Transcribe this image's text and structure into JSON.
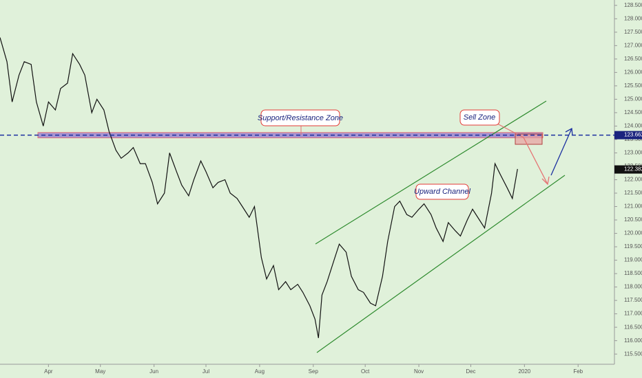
{
  "chart_data": {
    "type": "line",
    "color": "#111111",
    "x": [
      0,
      4,
      7,
      11,
      14,
      18,
      21,
      25,
      28,
      32,
      35,
      39,
      42,
      46,
      49,
      53,
      56,
      60,
      63,
      67,
      70,
      74,
      77,
      81,
      84,
      88,
      91,
      95,
      98,
      102,
      105,
      109,
      112,
      116,
      119,
      123,
      126,
      130,
      133,
      137,
      140,
      144,
      147,
      151,
      154,
      158,
      161,
      165,
      168,
      172,
      175,
      179,
      182,
      184,
      186,
      189,
      193,
      196,
      200,
      203,
      207,
      210,
      214,
      217,
      221,
      224,
      228,
      231,
      235,
      238,
      242,
      245,
      249,
      252,
      256,
      259,
      263,
      266,
      270,
      273,
      277,
      280,
      284,
      286,
      289,
      293,
      296,
      299
    ],
    "values": [
      127.3,
      126.4,
      124.9,
      125.9,
      126.4,
      126.3,
      124.9,
      124.0,
      124.9,
      124.6,
      125.4,
      125.6,
      126.7,
      126.3,
      125.9,
      124.5,
      125.0,
      124.6,
      123.8,
      123.1,
      122.8,
      123.0,
      123.2,
      122.6,
      122.6,
      121.9,
      121.1,
      121.5,
      123.0,
      122.3,
      121.8,
      121.4,
      122.0,
      122.7,
      122.3,
      121.7,
      121.9,
      122.0,
      121.5,
      121.3,
      121.0,
      120.6,
      121.0,
      119.1,
      118.3,
      118.8,
      117.9,
      118.2,
      117.9,
      118.1,
      117.8,
      117.3,
      116.8,
      116.1,
      117.7,
      118.2,
      119.0,
      119.6,
      119.3,
      118.4,
      117.9,
      117.8,
      117.4,
      117.3,
      118.4,
      119.7,
      121.0,
      121.2,
      120.7,
      120.6,
      120.9,
      121.1,
      120.7,
      120.2,
      119.7,
      120.4,
      120.1,
      119.9,
      120.5,
      120.9,
      120.5,
      120.2,
      121.5,
      122.6,
      122.2,
      121.7,
      121.3,
      122.4
    ],
    "xlim": [
      0,
      355
    ],
    "ylim": [
      115.12,
      128.7
    ],
    "xticks": [
      {
        "value": 28,
        "label": "Apr"
      },
      {
        "value": 58,
        "label": "May"
      },
      {
        "value": 89,
        "label": "Jun"
      },
      {
        "value": 119,
        "label": "Jul"
      },
      {
        "value": 150,
        "label": "Aug"
      },
      {
        "value": 181,
        "label": "Sep"
      },
      {
        "value": 211,
        "label": "Oct"
      },
      {
        "value": 242,
        "label": "Nov"
      },
      {
        "value": 272,
        "label": "Dec"
      },
      {
        "value": 303,
        "label": "2020"
      },
      {
        "value": 334,
        "label": "Feb"
      }
    ],
    "yticks": [
      {
        "value": 115.5,
        "label": "115.500"
      },
      {
        "value": 116,
        "label": "116.000"
      },
      {
        "value": 116.5,
        "label": "116.500"
      },
      {
        "value": 117,
        "label": "117.000"
      },
      {
        "value": 117.5,
        "label": "117.500"
      },
      {
        "value": 118,
        "label": "118.000"
      },
      {
        "value": 118.5,
        "label": "118.500"
      },
      {
        "value": 119,
        "label": "119.000"
      },
      {
        "value": 119.5,
        "label": "119.500"
      },
      {
        "value": 120,
        "label": "120.000"
      },
      {
        "value": 120.5,
        "label": "120.500"
      },
      {
        "value": 121,
        "label": "121.000"
      },
      {
        "value": 121.5,
        "label": "121.500"
      },
      {
        "value": 122,
        "label": "122.000"
      },
      {
        "value": 122.5,
        "label": "122.500"
      },
      {
        "value": 123,
        "label": "123.000"
      },
      {
        "value": 123.5,
        "label": "123.500"
      },
      {
        "value": 124,
        "label": "124.000"
      },
      {
        "value": 124.5,
        "label": "124.500"
      },
      {
        "value": 125,
        "label": "125.000"
      },
      {
        "value": 125.5,
        "label": "125.500"
      },
      {
        "value": 126,
        "label": "126.000"
      },
      {
        "value": 126.5,
        "label": "126.500"
      },
      {
        "value": 127,
        "label": "127.000"
      },
      {
        "value": 127.5,
        "label": "127.500"
      },
      {
        "value": 128,
        "label": "128.000"
      },
      {
        "value": 128.5,
        "label": "128.500"
      }
    ],
    "level": {
      "value": 123.662,
      "label": "123.662"
    },
    "last": {
      "value": 122.382,
      "label": "122.382"
    },
    "zone": {
      "low": 123.56,
      "high": 123.76
    },
    "annotations": [
      "Support/Resistance Zone",
      "Sell Zone",
      "Upward Channel"
    ]
  }
}
